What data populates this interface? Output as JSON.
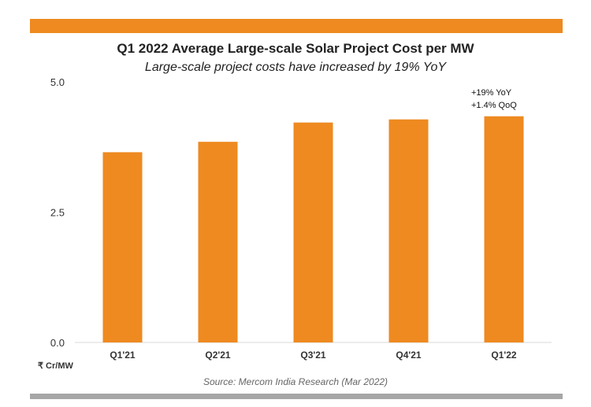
{
  "chart_data": {
    "type": "bar",
    "title": "Q1 2022 Average Large-scale Solar Project Cost per MW",
    "subtitle": "Large-scale project costs have increased by 19% YoY",
    "categories": [
      "Q1'21",
      "Q2'21",
      "Q3'21",
      "Q4'21",
      "Q1'22"
    ],
    "values": [
      3.65,
      3.85,
      4.22,
      4.28,
      4.34
    ],
    "ylabel": "₹ Cr/MW",
    "xlabel": "",
    "ylim": [
      0,
      5
    ],
    "yticks": [
      "0.0",
      "2.5",
      "5.0"
    ],
    "grid": false,
    "annotations": [
      "+19% YoY",
      "+1.4% QoQ"
    ],
    "source": "Source: Mercom India Research (Mar 2022)",
    "bar_color": "#ee8a20"
  },
  "colors": {
    "top_bar": "#ee8a20",
    "bottom_bar": "#a6a6a6"
  }
}
